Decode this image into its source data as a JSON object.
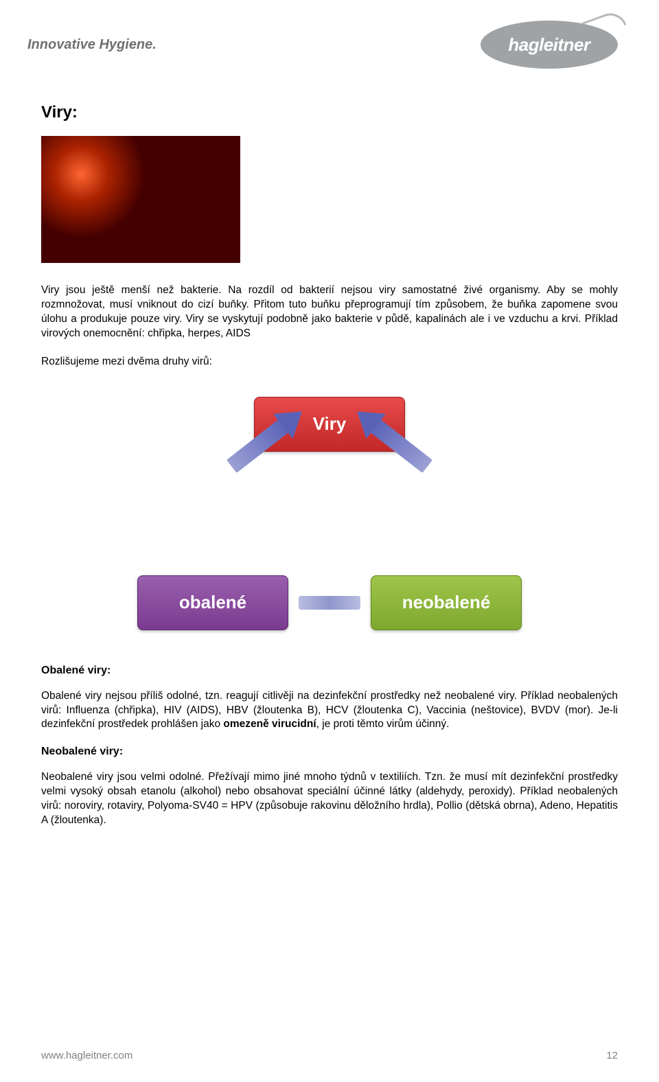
{
  "header": {
    "tagline": "Innovative Hygiene.",
    "logo_text": "hagleitner"
  },
  "title": "Viry:",
  "intro_para": "Viry jsou ještě menší než bakterie. Na rozdíl od bakterií nejsou viry samostatné živé organismy. Aby se mohly rozmnožovat, musí vniknout do cizí buňky. Přitom tuto buňku přeprogramují tím způsobem, že buňka zapomene svou úlohu a produkuje pouze viry. Viry se vyskytují podobně jako bakterie v půdě, kapalinách ale i ve vzduchu a krvi. Příklad virových onemocnění: chřipka, herpes, AIDS",
  "subtitle": "Rozlišujeme mezi dvěma druhy virů:",
  "diagram": {
    "top": {
      "label": "Viry",
      "bg_gradient": [
        "#e74a4a",
        "#c22828"
      ]
    },
    "left": {
      "label": "obalené",
      "bg_gradient": [
        "#9a5fae",
        "#7a3b8f"
      ]
    },
    "right": {
      "label": "neobalené",
      "bg_gradient": [
        "#9fc54a",
        "#7ea82e"
      ]
    },
    "arrow_color": "#5a62b8"
  },
  "section1": {
    "title": "Obalené viry:",
    "body_part1": "Obalené viry nejsou příliš odolné, tzn. reagují citlivěji na dezinfekční prostředky než neobalené viry. Příklad neobalených virů: Influenza (chřipka), HIV (AIDS), HBV (žloutenka B), HCV (žloutenka C), Vaccinia (neštovice), BVDV (mor). Je-li dezinfekční prostředek prohlášen jako ",
    "bold": "omezeně virucidní",
    "body_part2": ", je proti těmto virům účinný."
  },
  "section2": {
    "title": "Neobalené viry:",
    "body": "Neobalené viry jsou velmi odolné. Přežívají mimo jiné mnoho týdnů v textiliích. Tzn. že musí mít dezinfekční prostředky velmi vysoký obsah etanolu (alkohol) nebo obsahovat speciální účinné látky (aldehydy, peroxidy). Příklad neobalených virů: noroviry, rotaviry, Polyoma-SV40 = HPV (způsobuje rakovinu děložního hrdla), Pollio (dětská obrna), Adeno, Hepatitis A (žloutenka)."
  },
  "footer": {
    "url": "www.hagleitner.com",
    "page": "12"
  },
  "colors": {
    "text": "#000000",
    "grey": "#808080",
    "logo_bg": "#9fa3a6"
  }
}
